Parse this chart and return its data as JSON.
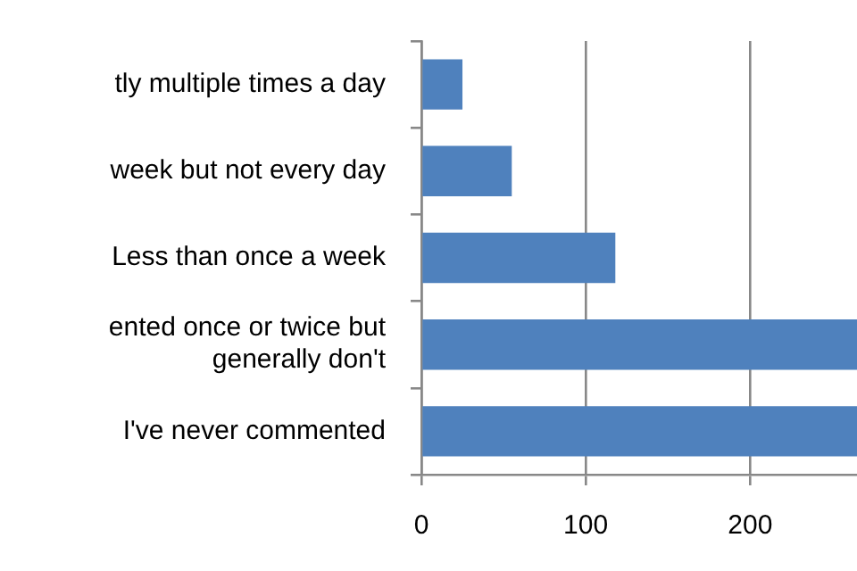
{
  "chart_data": {
    "type": "bar",
    "orientation": "horizontal",
    "categories": [
      "tly multiple times a day",
      "week but not every day",
      "Less than once a week",
      "ented once or twice but\ngenerally don't",
      "I've never commented"
    ],
    "values": [
      25,
      55,
      118,
      265,
      265
    ],
    "color": "#4f81bd",
    "xlim": [
      0,
      265
    ],
    "xticks": [
      0,
      100,
      200
    ],
    "grid": "x",
    "legend": false
  }
}
